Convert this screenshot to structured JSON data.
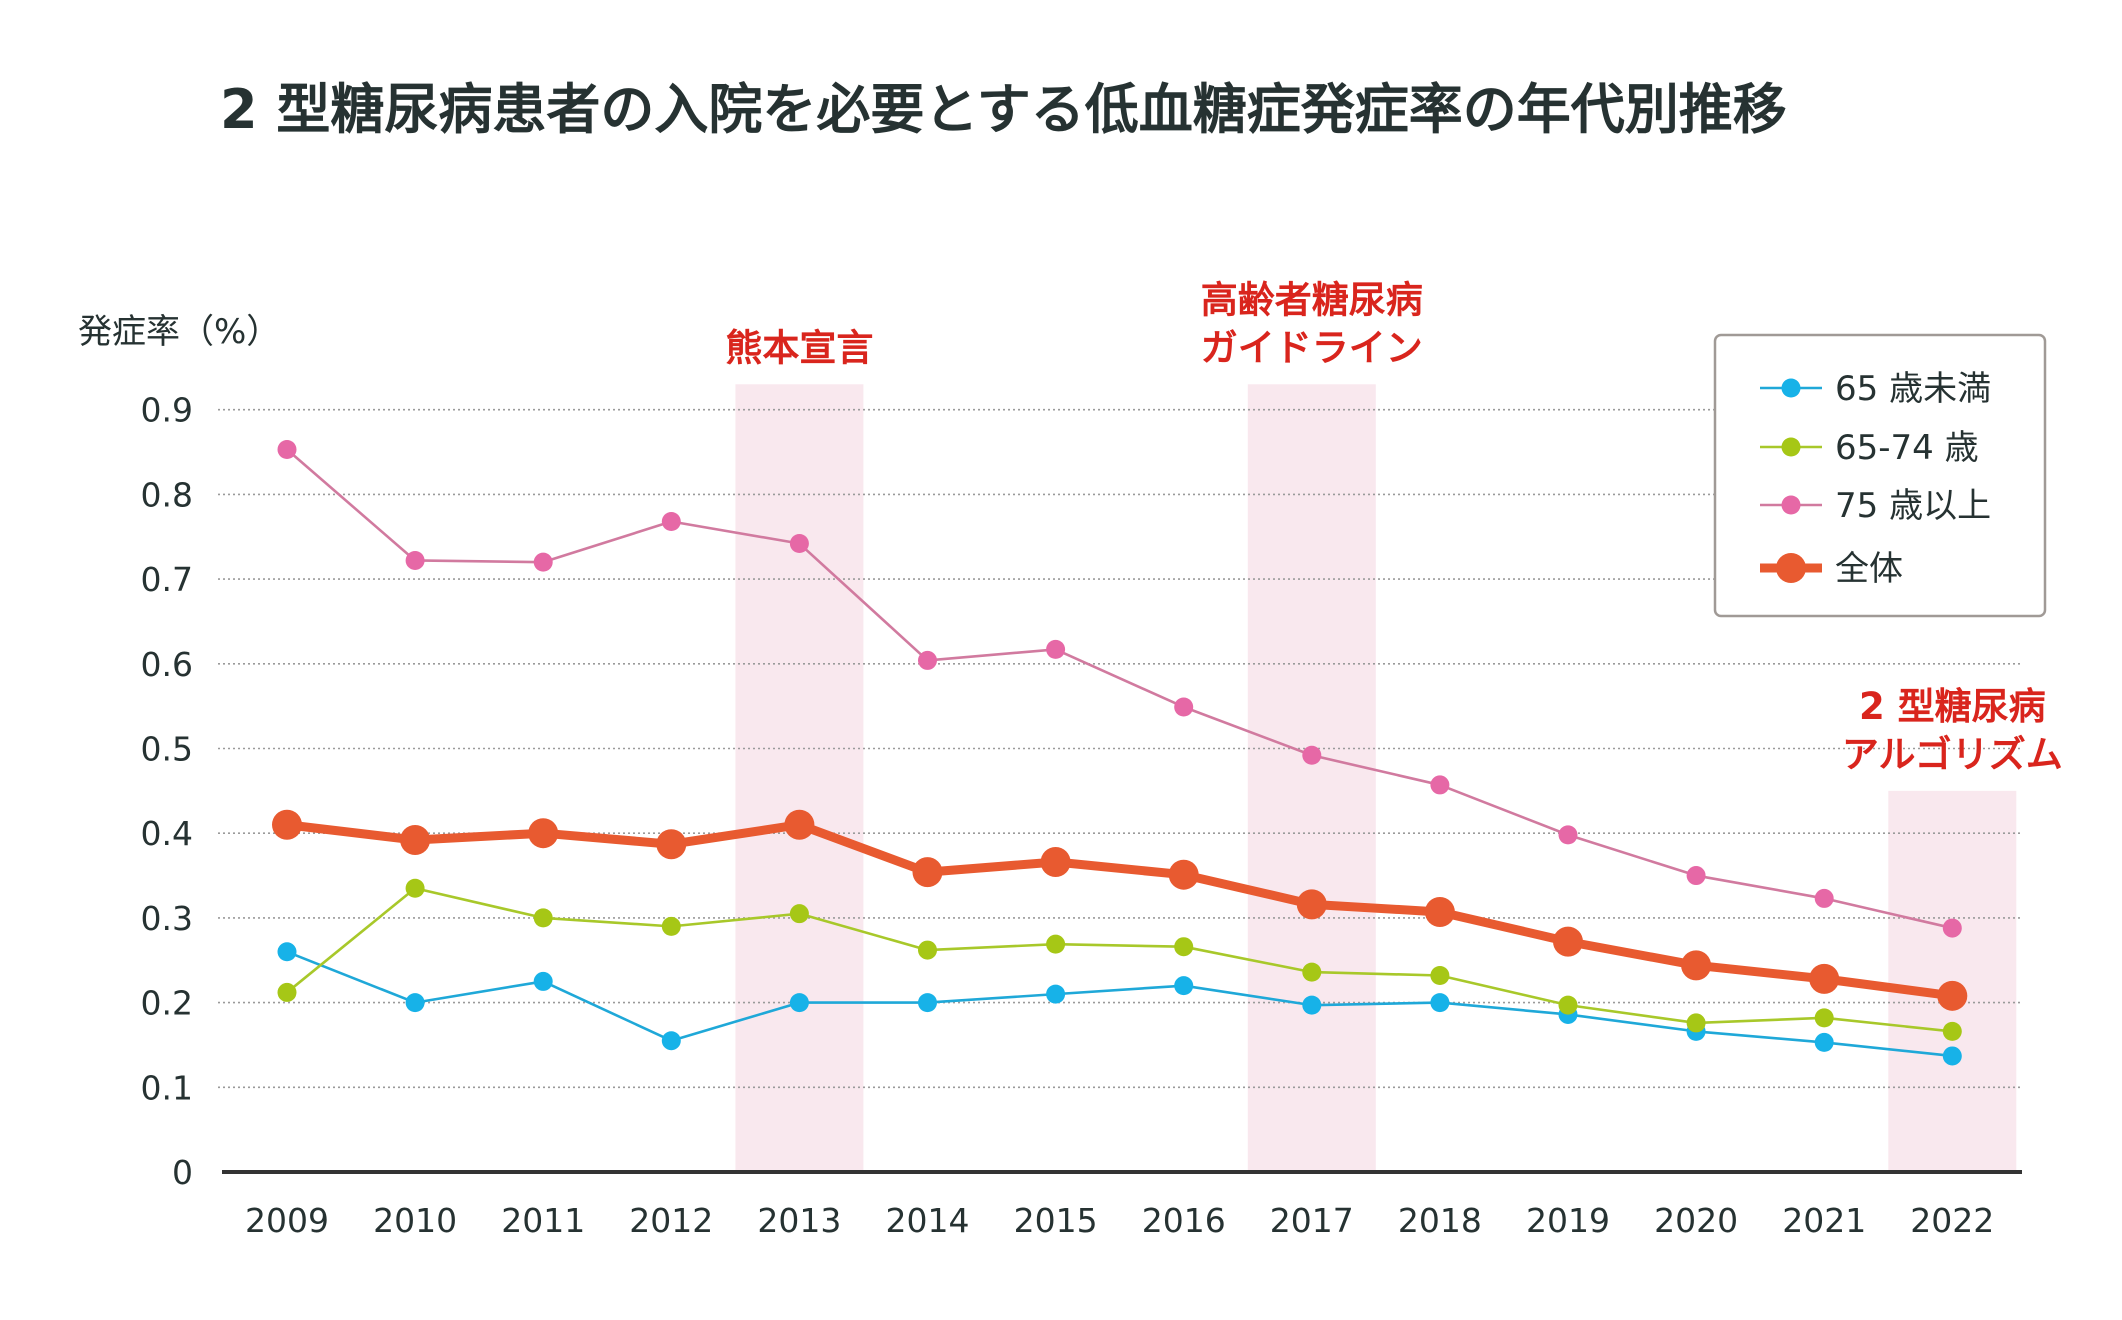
{
  "chart_data": {
    "type": "line",
    "title": "2 型糖尿病患者の入院を必要とする低血糖症発症率の年代別推移",
    "xlabel": "",
    "ylabel": "発症率（%）",
    "ylim": [
      0,
      0.9
    ],
    "yticks": [
      "0",
      "0.1",
      "0.2",
      "0.3",
      "0.4",
      "0.5",
      "0.6",
      "0.7",
      "0.8",
      "0.9"
    ],
    "ytick_values": [
      0,
      0.1,
      0.2,
      0.3,
      0.4,
      0.5,
      0.6,
      0.7,
      0.8,
      0.9
    ],
    "grid": "horizontal-dotted",
    "legend_position": "top-right",
    "categories": [
      "2009",
      "2010",
      "2011",
      "2012",
      "2013",
      "2014",
      "2015",
      "2016",
      "2017",
      "2018",
      "2019",
      "2020",
      "2021",
      "2022"
    ],
    "series": [
      {
        "name": "65 歳未満",
        "color": "#17b2e8",
        "line_color": "#1fa8d8",
        "emphasis": false,
        "values": [
          0.26,
          0.2,
          0.225,
          0.155,
          0.2,
          0.2,
          0.21,
          0.22,
          0.197,
          0.2,
          0.186,
          0.166,
          0.153,
          0.137
        ]
      },
      {
        "name": "65-74 歳",
        "color": "#a6c716",
        "line_color": "#a8c82a",
        "emphasis": false,
        "values": [
          0.212,
          0.335,
          0.3,
          0.29,
          0.305,
          0.262,
          0.269,
          0.266,
          0.236,
          0.232,
          0.197,
          0.176,
          0.182,
          0.166
        ]
      },
      {
        "name": "75 歳以上",
        "color": "#e668a6",
        "line_color": "#d17a9f",
        "emphasis": false,
        "values": [
          0.853,
          0.722,
          0.72,
          0.768,
          0.742,
          0.604,
          0.617,
          0.549,
          0.492,
          0.457,
          0.398,
          0.35,
          0.323,
          0.288
        ]
      },
      {
        "name": "全体",
        "color": "#e85a30",
        "line_color": "#e85a30",
        "emphasis": true,
        "values": [
          0.41,
          0.392,
          0.4,
          0.387,
          0.41,
          0.354,
          0.366,
          0.351,
          0.316,
          0.307,
          0.272,
          0.244,
          0.228,
          0.208
        ]
      }
    ],
    "annotations": [
      {
        "category": "2013",
        "lines": [
          "熊本宣言"
        ],
        "band_top_value": 0.93
      },
      {
        "category": "2017",
        "lines": [
          "高齢者糖尿病",
          "ガイドライン"
        ],
        "band_top_value": 0.93
      },
      {
        "category": "2022",
        "lines": [
          "2 型糖尿病",
          "アルゴリズム"
        ],
        "band_top_value": 0.45
      }
    ],
    "colors": {
      "annotation_text": "#d9251d",
      "band_fill": "#f9e8ee",
      "axis": "#333333",
      "grid": "#9a9a9a",
      "text": "#263232",
      "legend_border": "#a09a96"
    }
  }
}
